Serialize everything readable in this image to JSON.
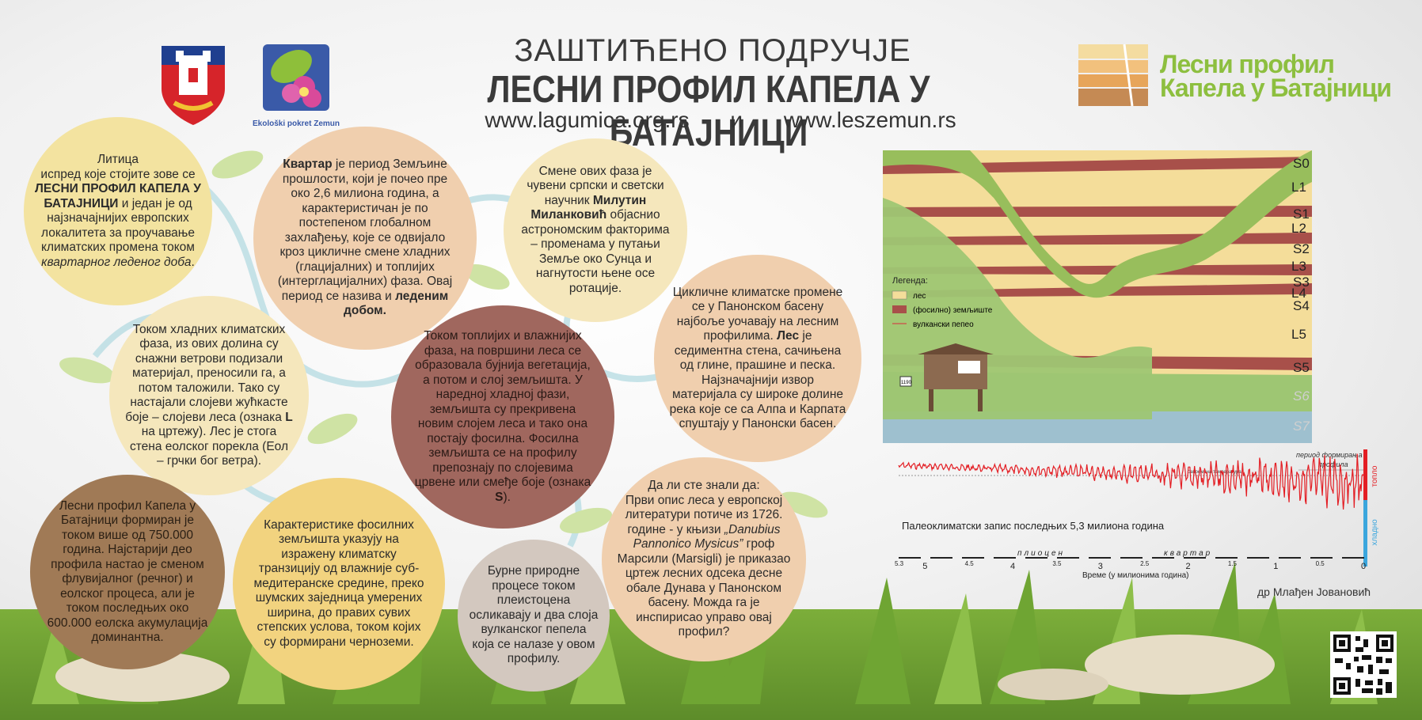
{
  "header": {
    "title_top": "ЗАШТИЋЕНО ПОДРУЧЈЕ",
    "title_main": "ЛЕСНИ ПРОФИЛ КАПЕЛА У БАТАЈНИЦИ",
    "url1": "www.lagumica.org.rs",
    "url_sep": "и",
    "url2": "www.leszemun.rs"
  },
  "logos": {
    "ecology_label": "Ekološki pokret Zemun",
    "profile_line1": "Лесни профил",
    "profile_line2": "Капела у Батајници"
  },
  "circles": [
    {
      "text_a": "Литица",
      "text_b": "испред које стојите зове се ",
      "bold": "ЛЕСНИ ПРОФИЛ КАПЕЛА У БАТАЈНИЦИ",
      "text_c": " и један је од најзначајнијих европских локалитета за проучавање климатских промена током ",
      "italic": "квартарног леденог доба",
      "text_d": "."
    },
    {
      "bold1": "Квартар",
      "text_a": " је период Земљине прошлости, који је почео пре око 2,6 милиона година, а карактеристичан је по постепеном глобалном захлађењу, које се одвијало кроз цикличне смене хладних (глацијалних) и топлијих (интерглацијалних) фаза. Овај период се назива и ",
      "bold2": "леденим добом."
    },
    {
      "text_a": "Смене ових фаза је чувени српски и светски научник ",
      "bold": "Милутин Миланковић",
      "text_b": " објаснио астрономским факторима – променама у путањи Земље око Сунца и нагнутости њене осе ротације."
    },
    {
      "text_a": "Цикличне климатске промене се у Панонском басену најбоље уочавају на лесним профилима. ",
      "bold": "Лес",
      "text_b": " је седиментна стена, сачињена од глине, прашине и песка. Најзначајнији извор материјала су широке долине река које се са Алпа и Карпата спуштају у Панонски басен."
    },
    {
      "text_a": "Током хладних климатских фаза, из ових долина су снажни ветрови подизали материјал, преносили га, а потом таложили. Тако су настајали слојеви жућкасте боје – слојеви леса (ознака ",
      "bold": "L",
      "text_b": " на цртежу). Лес је стога стена еолског порекла (Еол – грчки бог ветра)."
    },
    {
      "text_a": "Током топлијих и влажнијих фаза, на површини леса се образовала бујнија вегетација, а потом и слој земљишта. У наредној хладној фази, земљишта су прекривена новим слојем леса и тако она постају фосилна. Фосилна земљишта се на профилу препознају по слојевима црвене или смеђе боје (ознака ",
      "bold": "S",
      "text_b": ")."
    },
    {
      "text": "Лесни профил Капела у Батајници формиран је током више од 750.000 година. Најстарији део профила настао је сменом флувијалног (речног) и еолског процеса, али је током последњих око 600.000 еолска акумулација доминантна."
    },
    {
      "text": "Карактеристике фосилних земљишта указују на изражену климатску транзицију од влажније суб-медитеранске средине, преко шумских заједница умерених ширина, до правих сувих степских услова, током којих су формирани черноземи."
    },
    {
      "text": "Бурне природне процесе током плеистоцена осликавају и два слоја вулканског пепела која се налазе у овом профилу."
    },
    {
      "text_a": "Да ли сте знали да:",
      "text_b": "Први опис леса у европској литератури потиче из 1726. године - у књизи ",
      "italic": "„Danubius Pannonico Mysicus”",
      "text_c": " гроф Марсили (Marsigli) је приказао цртеж лесних одсека десне обале Дунава у Панонском басену. Можда га је инспирисао управо овај профил?"
    }
  ],
  "profile_diagram": {
    "legend_title": "Легенда:",
    "legend": [
      {
        "label": "лес",
        "color": "#f4dd9a"
      },
      {
        "label": "(фосилно) земљиште",
        "color": "#a8504a"
      },
      {
        "label": "вулкански пепео",
        "color": "#c86050"
      }
    ],
    "layers": [
      "S0",
      "L1",
      "S1",
      "L2",
      "S2",
      "L3",
      "S3",
      "L4",
      "S4",
      "L5",
      "S5",
      "S6",
      "S7"
    ],
    "sign": "1190"
  },
  "chart_data": {
    "type": "line",
    "caption": "Палеоклиматски запис последњих 5,3 милиона година",
    "label_formation": "период формирања",
    "label_profile": "профила",
    "label_modern": "савремена температура",
    "epoch_plio": "плиоцен",
    "epoch_quat": "квартар",
    "xlabel": "Време (у милионима година)",
    "warm": "топло",
    "cold": "хладно",
    "xlim": [
      5.3,
      0
    ],
    "major_ticks": [
      "5",
      "4",
      "3",
      "2",
      "1",
      "0"
    ],
    "minor_ticks": [
      "5.3",
      "4.5",
      "3.5",
      "2.5",
      "1.5",
      "0.5"
    ],
    "line_color": "#e31e24"
  },
  "credit": "др Млађен Јовановић"
}
